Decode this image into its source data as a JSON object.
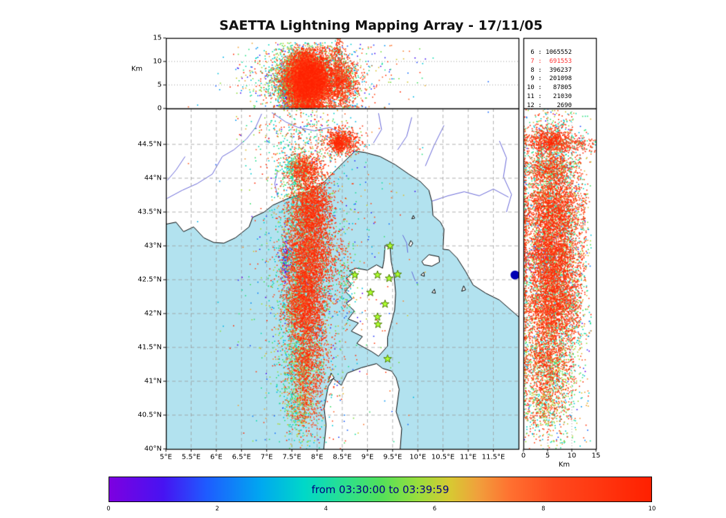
{
  "colors": {
    "sea": "#b2e2ef",
    "land": "#ffffff",
    "coast": "#000000",
    "river": "#6464d8",
    "lake": "#0000b4",
    "grid": "#999999",
    "star_fill": "#adff2f",
    "star_stroke": "#4a7a00",
    "highlight": "#ff3333",
    "colorbar_text": "#000080"
  },
  "chart_data": {
    "type": "scatter",
    "title": "SAETTA Lightning Mapping Array - 17/11/05",
    "time_window": {
      "start": "03:30:00",
      "end": "03:39:59"
    },
    "panels": {
      "alt_lon": {
        "ylabel": "Km",
        "ylim": [
          0,
          15
        ],
        "ytick_values": [
          0,
          5,
          10,
          15
        ],
        "ytick_labels": [
          "0",
          "5",
          "10",
          "15"
        ]
      },
      "map": {
        "lon_range": [
          5,
          12
        ],
        "lat_range": [
          40,
          45.03
        ],
        "lon_tick_values": [
          5,
          5.5,
          6,
          6.5,
          7,
          7.5,
          8,
          8.5,
          9,
          9.5,
          10,
          10.5,
          11,
          11.5
        ],
        "lon_tick_labels": [
          "5°E",
          "5.5°E",
          "6°E",
          "6.5°E",
          "7°E",
          "7.5°E",
          "8°E",
          "8.5°E",
          "9°E",
          "9.5°E",
          "10°E",
          "10.5°E",
          "11°E",
          "11.5°E"
        ],
        "lat_tick_values": [
          40,
          40.5,
          41,
          41.5,
          42,
          42.5,
          43,
          43.5,
          44,
          44.5
        ],
        "lat_tick_labels": [
          "40°N",
          "40.5°N",
          "41°N",
          "41.5°N",
          "42°N",
          "42.5°N",
          "43°N",
          "43.5°N",
          "44°N",
          "44.5°N"
        ]
      },
      "alt_lat": {
        "xlabel": "Km",
        "xlim": [
          0,
          15
        ],
        "xtick_values": [
          0,
          5,
          10,
          15
        ],
        "xtick_labels": [
          "0",
          "5",
          "10",
          "15"
        ]
      }
    },
    "source_counts": [
      {
        "label": "6",
        "value": "1065552",
        "highlight": false
      },
      {
        "label": "7",
        "value": "691553",
        "highlight": true
      },
      {
        "label": "8",
        "value": "396237",
        "highlight": false
      },
      {
        "label": "9",
        "value": "201098",
        "highlight": false
      },
      {
        "label": "10",
        "value": "87805",
        "highlight": false
      },
      {
        "label": "11",
        "value": "21030",
        "highlight": false
      },
      {
        "label": "12",
        "value": "2690",
        "highlight": false
      }
    ],
    "colorbar": {
      "label": "from 03:30:00 to 03:39:59",
      "tick_values": [
        0,
        2,
        4,
        6,
        8,
        10
      ],
      "tick_labels": [
        "0",
        "2",
        "4",
        "6",
        "8",
        "10"
      ],
      "stops": [
        [
          0.0,
          "#7d00e0"
        ],
        [
          0.1,
          "#4713f2"
        ],
        [
          0.18,
          "#1e5cff"
        ],
        [
          0.28,
          "#00a8f0"
        ],
        [
          0.36,
          "#00d8c8"
        ],
        [
          0.44,
          "#2ee08a"
        ],
        [
          0.5,
          "#52e05a"
        ],
        [
          0.57,
          "#9ade3c"
        ],
        [
          0.63,
          "#d8c832"
        ],
        [
          0.68,
          "#f0a03c"
        ],
        [
          0.74,
          "#ff7030"
        ],
        [
          0.82,
          "#ff4a1e"
        ],
        [
          1.0,
          "#ff2000"
        ]
      ]
    },
    "stations_lonlat": [
      [
        9.45,
        43.0
      ],
      [
        8.75,
        42.57
      ],
      [
        9.2,
        42.57
      ],
      [
        9.43,
        42.52
      ],
      [
        9.6,
        42.58
      ],
      [
        9.06,
        42.31
      ],
      [
        9.35,
        42.14
      ],
      [
        9.2,
        41.95
      ],
      [
        9.21,
        41.84
      ],
      [
        9.4,
        41.33
      ]
    ],
    "clusters": [
      {
        "lon": 7.72,
        "lat": 44.12,
        "sx": 0.17,
        "sy": 0.13,
        "am": 5.5,
        "as": 2.8,
        "ax": 12,
        "n": 900,
        "shift": true,
        "t": [
          [
            3,
            5,
            0.3
          ],
          [
            5.5,
            7,
            0.1
          ],
          [
            7.5,
            10,
            0.6
          ]
        ]
      },
      {
        "lon": 7.85,
        "lat": 43.55,
        "sx": 0.2,
        "sy": 0.22,
        "am": 6,
        "as": 3,
        "ax": 13,
        "n": 1900,
        "shift": true,
        "t": [
          [
            3,
            5,
            0.18
          ],
          [
            5.5,
            7,
            0.07
          ],
          [
            7.5,
            10,
            0.75
          ]
        ]
      },
      {
        "lon": 7.82,
        "lat": 42.82,
        "sx": 0.26,
        "sy": 0.3,
        "am": 6,
        "as": 3,
        "ax": 13,
        "n": 2600,
        "shift": true,
        "t": [
          [
            3,
            5,
            0.18
          ],
          [
            5.5,
            7,
            0.07
          ],
          [
            7.5,
            10,
            0.75
          ]
        ]
      },
      {
        "lon": 7.72,
        "lat": 42.08,
        "sx": 0.2,
        "sy": 0.26,
        "am": 6,
        "as": 3,
        "ax": 12,
        "n": 1900,
        "shift": true,
        "t": [
          [
            3,
            5,
            0.15
          ],
          [
            5.5,
            7,
            0.1
          ],
          [
            7.5,
            10,
            0.75
          ]
        ]
      },
      {
        "lon": 7.78,
        "lat": 41.3,
        "sx": 0.2,
        "sy": 0.28,
        "am": 5,
        "as": 2.8,
        "ax": 11,
        "n": 1300,
        "shift": true,
        "t": [
          [
            3,
            5,
            0.2
          ],
          [
            5.5,
            7,
            0.2
          ],
          [
            7.5,
            10,
            0.6
          ]
        ]
      },
      {
        "lon": 7.72,
        "lat": 40.62,
        "sx": 0.16,
        "sy": 0.22,
        "am": 4.5,
        "as": 2.5,
        "ax": 10,
        "n": 550,
        "shift": true,
        "t": [
          [
            3,
            5,
            0.3
          ],
          [
            5.5,
            7,
            0.3
          ],
          [
            7.5,
            10,
            0.4
          ]
        ]
      },
      {
        "lon": 7.8,
        "lat": 42.6,
        "sx": 0.45,
        "sy": 1.5,
        "am": 7,
        "as": 3.5,
        "ax": 14,
        "n": 1600,
        "shift": false,
        "t": [
          [
            3,
            5,
            0.45
          ],
          [
            5.5,
            7,
            0.25
          ],
          [
            7.5,
            9.5,
            0.2
          ],
          [
            0.5,
            2.5,
            0.1
          ]
        ]
      },
      {
        "lon": 7.38,
        "lat": 42.78,
        "sx": 0.05,
        "sy": 0.18,
        "am": 4,
        "as": 2,
        "ax": 8,
        "n": 130,
        "shift": false,
        "t": [
          [
            0.1,
            1.2,
            1
          ]
        ]
      },
      {
        "lon": 8.5,
        "lat": 44.55,
        "sx": 0.17,
        "sy": 0.09,
        "am": 5.5,
        "as": 2.5,
        "ax": 15,
        "n": 700,
        "shift": false,
        "t": [
          [
            7.5,
            10,
            0.8
          ],
          [
            3,
            5,
            0.15
          ],
          [
            5.5,
            7,
            0.05
          ]
        ]
      },
      {
        "lon": 8.42,
        "lat": 44.5,
        "sx": 0.05,
        "sy": 0.06,
        "am": 9,
        "as": 4,
        "ax": 15,
        "n": 250,
        "shift": false,
        "t": [
          [
            7.5,
            10,
            0.7
          ],
          [
            3,
            5,
            0.3
          ]
        ]
      },
      {
        "lon": 7.6,
        "lat": 44.62,
        "sx": 0.5,
        "sy": 0.28,
        "am": 6,
        "as": 3,
        "ax": 13,
        "n": 280,
        "shift": false,
        "t": [
          [
            3,
            5,
            0.4
          ],
          [
            5.5,
            7,
            0.15
          ],
          [
            7.5,
            10,
            0.35
          ],
          [
            0.5,
            2.5,
            0.1
          ]
        ]
      },
      {
        "lon": 8.1,
        "lat": 42.6,
        "sx": 0.9,
        "sy": 1.9,
        "am": 7,
        "as": 4,
        "ax": 14,
        "n": 420,
        "shift": false,
        "t": [
          [
            0.2,
            9.8,
            1
          ]
        ]
      },
      {
        "lon": 8.62,
        "lat": 42.5,
        "sx": 0.1,
        "sy": 0.25,
        "am": 5,
        "as": 2.5,
        "ax": 10,
        "n": 90,
        "shift": false,
        "t": [
          [
            3,
            6,
            0.7
          ],
          [
            7.5,
            9,
            0.3
          ]
        ]
      }
    ],
    "geo": {
      "land": [
        [
          [
            5.0,
            43.32
          ],
          [
            5.2,
            43.35
          ],
          [
            5.35,
            43.21
          ],
          [
            5.55,
            43.28
          ],
          [
            5.75,
            43.12
          ],
          [
            5.95,
            43.05
          ],
          [
            6.15,
            43.04
          ],
          [
            6.38,
            43.12
          ],
          [
            6.65,
            43.28
          ],
          [
            6.72,
            43.42
          ],
          [
            6.95,
            43.5
          ],
          [
            7.12,
            43.6
          ],
          [
            7.42,
            43.7
          ],
          [
            7.68,
            43.76
          ],
          [
            7.95,
            43.84
          ],
          [
            8.15,
            43.95
          ],
          [
            8.45,
            44.18
          ],
          [
            8.75,
            44.4
          ],
          [
            8.95,
            44.38
          ],
          [
            9.25,
            44.32
          ],
          [
            9.55,
            44.2
          ],
          [
            9.82,
            44.06
          ],
          [
            10.05,
            43.95
          ],
          [
            10.22,
            43.82
          ],
          [
            10.28,
            43.65
          ],
          [
            10.3,
            43.45
          ],
          [
            10.45,
            43.35
          ],
          [
            10.52,
            43.25
          ],
          [
            10.5,
            42.95
          ],
          [
            10.62,
            42.94
          ],
          [
            10.78,
            42.82
          ],
          [
            10.95,
            42.62
          ],
          [
            11.1,
            42.42
          ],
          [
            11.35,
            42.3
          ],
          [
            11.62,
            42.2
          ],
          [
            11.85,
            42.05
          ],
          [
            12.05,
            41.92
          ],
          [
            12.1,
            45.1
          ],
          [
            4.9,
            45.1
          ]
        ],
        [
          [
            9.35,
            43.01
          ],
          [
            9.45,
            42.97
          ],
          [
            9.47,
            42.78
          ],
          [
            9.53,
            42.55
          ],
          [
            9.56,
            42.3
          ],
          [
            9.54,
            42.05
          ],
          [
            9.47,
            41.85
          ],
          [
            9.4,
            41.65
          ],
          [
            9.4,
            41.52
          ],
          [
            9.22,
            41.37
          ],
          [
            9.08,
            41.44
          ],
          [
            8.93,
            41.5
          ],
          [
            8.79,
            41.56
          ],
          [
            8.9,
            41.66
          ],
          [
            8.68,
            41.74
          ],
          [
            8.82,
            41.86
          ],
          [
            8.62,
            41.92
          ],
          [
            8.74,
            42.04
          ],
          [
            8.58,
            42.15
          ],
          [
            8.7,
            42.22
          ],
          [
            8.56,
            42.33
          ],
          [
            8.68,
            42.43
          ],
          [
            8.58,
            42.52
          ],
          [
            8.72,
            42.6
          ],
          [
            8.64,
            42.63
          ],
          [
            8.78,
            42.67
          ],
          [
            9.0,
            42.64
          ],
          [
            9.18,
            42.72
          ],
          [
            9.3,
            42.67
          ],
          [
            9.33,
            42.8
          ]
        ],
        [
          [
            8.12,
            39.9
          ],
          [
            8.18,
            40.35
          ],
          [
            8.14,
            40.6
          ],
          [
            8.22,
            40.92
          ],
          [
            8.32,
            41.04
          ],
          [
            8.48,
            40.94
          ],
          [
            8.6,
            41.12
          ],
          [
            8.88,
            41.2
          ],
          [
            9.18,
            41.26
          ],
          [
            9.3,
            41.19
          ],
          [
            9.48,
            41.15
          ],
          [
            9.57,
            41.05
          ],
          [
            9.63,
            40.88
          ],
          [
            9.57,
            40.55
          ],
          [
            9.68,
            40.3
          ],
          [
            9.64,
            39.9
          ]
        ],
        [
          [
            10.08,
            42.77
          ],
          [
            10.22,
            42.87
          ],
          [
            10.42,
            42.84
          ],
          [
            10.43,
            42.76
          ],
          [
            10.28,
            42.7
          ],
          [
            10.12,
            42.72
          ]
        ],
        [
          [
            9.82,
            43.01
          ],
          [
            9.86,
            43.08
          ],
          [
            9.9,
            43.04
          ],
          [
            9.86,
            42.99
          ]
        ],
        [
          [
            9.88,
            43.4
          ],
          [
            9.91,
            43.45
          ],
          [
            9.94,
            43.41
          ]
        ],
        [
          [
            10.06,
            42.57
          ],
          [
            10.12,
            42.61
          ],
          [
            10.13,
            42.55
          ]
        ],
        [
          [
            10.28,
            42.31
          ],
          [
            10.33,
            42.36
          ],
          [
            10.35,
            42.3
          ]
        ],
        [
          [
            10.87,
            42.33
          ],
          [
            10.91,
            42.41
          ],
          [
            10.95,
            42.35
          ]
        ],
        [
          [
            8.22,
            40.99
          ],
          [
            8.28,
            41.12
          ],
          [
            8.34,
            41.05
          ]
        ]
      ],
      "rivers": [
        [
          [
            6.6,
            44.58
          ],
          [
            6.35,
            44.42
          ],
          [
            6.12,
            44.32
          ],
          [
            5.92,
            44.06
          ],
          [
            5.62,
            43.92
          ],
          [
            5.32,
            43.82
          ],
          [
            5.02,
            43.7
          ]
        ],
        [
          [
            5.38,
            44.32
          ],
          [
            5.2,
            44.12
          ],
          [
            5.03,
            43.97
          ]
        ],
        [
          [
            6.9,
            44.95
          ],
          [
            6.78,
            44.75
          ],
          [
            6.6,
            44.58
          ]
        ],
        [
          [
            7.22,
            44.12
          ],
          [
            7.16,
            43.92
          ],
          [
            7.22,
            43.72
          ]
        ],
        [
          [
            7.1,
            44.97
          ],
          [
            7.38,
            44.83
          ],
          [
            7.62,
            44.75
          ],
          [
            7.95,
            44.7
          ],
          [
            8.25,
            44.75
          ],
          [
            8.5,
            44.66
          ]
        ],
        [
          [
            9.12,
            44.52
          ],
          [
            9.28,
            44.72
          ],
          [
            9.22,
            44.96
          ]
        ],
        [
          [
            9.6,
            44.42
          ],
          [
            9.78,
            44.62
          ],
          [
            9.88,
            44.9
          ]
        ],
        [
          [
            10.15,
            44.18
          ],
          [
            10.32,
            44.48
          ],
          [
            10.52,
            44.78
          ]
        ],
        [
          [
            10.28,
            43.66
          ],
          [
            10.6,
            43.74
          ],
          [
            10.92,
            43.8
          ],
          [
            11.22,
            43.74
          ],
          [
            11.5,
            43.84
          ],
          [
            11.8,
            43.72
          ]
        ],
        [
          [
            11.62,
            44.55
          ],
          [
            11.76,
            44.3
          ],
          [
            11.7,
            44.02
          ],
          [
            11.86,
            43.76
          ],
          [
            11.76,
            43.5
          ]
        ],
        [
          [
            9.7,
            43.16
          ],
          [
            9.78,
            43.04
          ],
          [
            9.8,
            42.9
          ]
        ],
        [
          [
            9.88,
            42.62
          ],
          [
            9.95,
            42.48
          ]
        ]
      ],
      "lakes": [
        {
          "lon": 11.93,
          "lat": 42.57
        }
      ]
    }
  }
}
